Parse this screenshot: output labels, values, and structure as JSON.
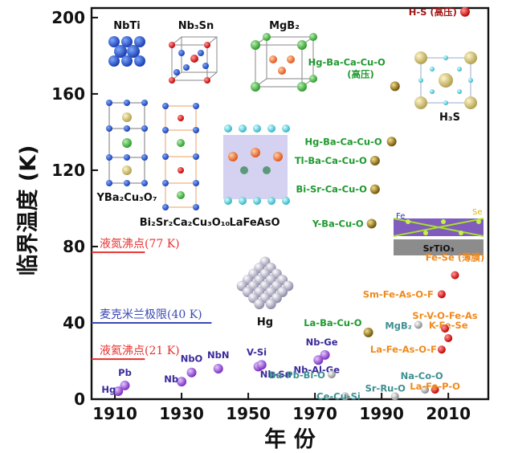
{
  "chart_data": {
    "type": "scatter",
    "xlabel": "年 份",
    "ylabel": "临界温度 (K)",
    "xlim": [
      1903,
      2022
    ],
    "ylim": [
      0,
      205
    ],
    "xticks": [
      1910,
      1930,
      1950,
      1970,
      1990,
      2010
    ],
    "yticks": [
      0,
      40,
      80,
      120,
      160,
      200
    ],
    "grid": false,
    "colors": {
      "conventional": "#9b59d8",
      "cuprate": "#a67c1f",
      "iron": "#e87a3a",
      "other": "#9a9a9a",
      "hs": "#e21b1b",
      "ref_red": "#e8302e",
      "ref_blue": "#3a48b4",
      "label_purple": "#3a2a9a",
      "label_green": "#1f9a2f",
      "label_orange": "#f08a1c",
      "label_teal": "#3f8f93",
      "label_darkred": "#a31515"
    },
    "points": [
      {
        "label": "Hg",
        "x": 1911,
        "y": 4.2,
        "group": "conventional",
        "lcolor": "label_purple"
      },
      {
        "label": "Pb",
        "x": 1913,
        "y": 7.2,
        "group": "conventional",
        "lcolor": "label_purple"
      },
      {
        "label": "Nb",
        "x": 1930,
        "y": 9.2,
        "group": "conventional",
        "lcolor": "label_purple"
      },
      {
        "label": "NbO",
        "x": 1933,
        "y": 14,
        "group": "conventional",
        "lcolor": "label_purple"
      },
      {
        "label": "NbN",
        "x": 1941,
        "y": 16,
        "group": "conventional",
        "lcolor": "label_purple"
      },
      {
        "label": "V-Si",
        "x": 1953,
        "y": 17.1,
        "group": "conventional",
        "lcolor": "label_purple"
      },
      {
        "label": "Nb-Sn",
        "x": 1954,
        "y": 18,
        "group": "conventional",
        "lcolor": "label_purple"
      },
      {
        "label": "Nb-Ge",
        "x": 1973,
        "y": 23.2,
        "group": "conventional",
        "lcolor": "label_purple"
      },
      {
        "label": "Nb-Al-Ge",
        "x": 1971,
        "y": 20.5,
        "group": "conventional",
        "lcolor": "label_purple"
      },
      {
        "label": "Ba-Pb-Bi-O",
        "x": 1975,
        "y": 13,
        "group": "other",
        "lcolor": "label_teal"
      },
      {
        "label": "Ce-Cu-Si",
        "x": 1979,
        "y": 1.5,
        "group": "other",
        "lcolor": "label_teal"
      },
      {
        "label": "Sr-Ru-O",
        "x": 1994,
        "y": 1.5,
        "group": "other",
        "lcolor": "label_teal"
      },
      {
        "label": "Na-Co-O",
        "x": 2003,
        "y": 5,
        "group": "other",
        "lcolor": "label_teal"
      },
      {
        "label": "MgB₂",
        "x": 2001,
        "y": 39,
        "group": "other",
        "lcolor": "label_teal"
      },
      {
        "label": "La-Ba-Cu-O",
        "x": 1986,
        "y": 35,
        "group": "cuprate",
        "lcolor": "label_green"
      },
      {
        "label": "Y-Ba-Cu-O",
        "x": 1987,
        "y": 92,
        "group": "cuprate",
        "lcolor": "label_green"
      },
      {
        "label": "Bi-Sr-Ca-Cu-O",
        "x": 1988,
        "y": 110,
        "group": "cuprate",
        "lcolor": "label_green"
      },
      {
        "label": "Tl-Ba-Ca-Cu-O",
        "x": 1988,
        "y": 125,
        "group": "cuprate",
        "lcolor": "label_green"
      },
      {
        "label": "Hg-Ba-Ca-Cu-O",
        "x": 1993,
        "y": 135,
        "group": "cuprate",
        "lcolor": "label_green"
      },
      {
        "label": "Hg-Ba-Ca-Cu-O\n(高压)",
        "x": 1994,
        "y": 164,
        "group": "cuprate",
        "lcolor": "label_green"
      },
      {
        "label": "La-Fe-P-O",
        "x": 2006,
        "y": 5,
        "group": "iron",
        "lcolor": "label_orange"
      },
      {
        "label": "La-Fe-As-O-F",
        "x": 2008,
        "y": 26,
        "group": "iron",
        "lcolor": "label_orange"
      },
      {
        "label": "K-Fe-Se",
        "x": 2010,
        "y": 32,
        "group": "iron",
        "lcolor": "label_orange"
      },
      {
        "label": "Sr-V-O-Fe-As",
        "x": 2009,
        "y": 37,
        "group": "iron",
        "lcolor": "label_orange"
      },
      {
        "label": "Sm-Fe-As-O-F",
        "x": 2008,
        "y": 55,
        "group": "iron",
        "lcolor": "label_orange"
      },
      {
        "label": "Fe-Se (薄膜)",
        "x": 2012,
        "y": 65,
        "group": "iron",
        "lcolor": "label_orange"
      },
      {
        "label": "H-S (高压)",
        "x": 2015,
        "y": 203,
        "group": "hs",
        "lcolor": "label_darkred"
      }
    ],
    "reference_lines": [
      {
        "label": "液氮沸点(77 K)",
        "y": 77,
        "x_end": 1919,
        "color": "ref_red"
      },
      {
        "label": "麦克米兰极限(40 K)",
        "y": 40,
        "x_end": 1939,
        "color": "ref_blue"
      },
      {
        "label": "液氦沸点(21 K)",
        "y": 21,
        "x_end": 1919,
        "color": "ref_red"
      }
    ],
    "structures": [
      {
        "label": "NbTi"
      },
      {
        "label": "Nb₃Sn"
      },
      {
        "label": "MgB₂"
      },
      {
        "label": "YBa₂Cu₃O₇"
      },
      {
        "label": "Bi₂Sr₂Ca₂Cu₃O₁₀"
      },
      {
        "label": "LaFeAsO"
      },
      {
        "label": "Hg"
      },
      {
        "label": "H₃S"
      },
      {
        "label": "SrTiO₃"
      },
      {
        "label": "Fe"
      },
      {
        "label": "Se"
      }
    ]
  }
}
